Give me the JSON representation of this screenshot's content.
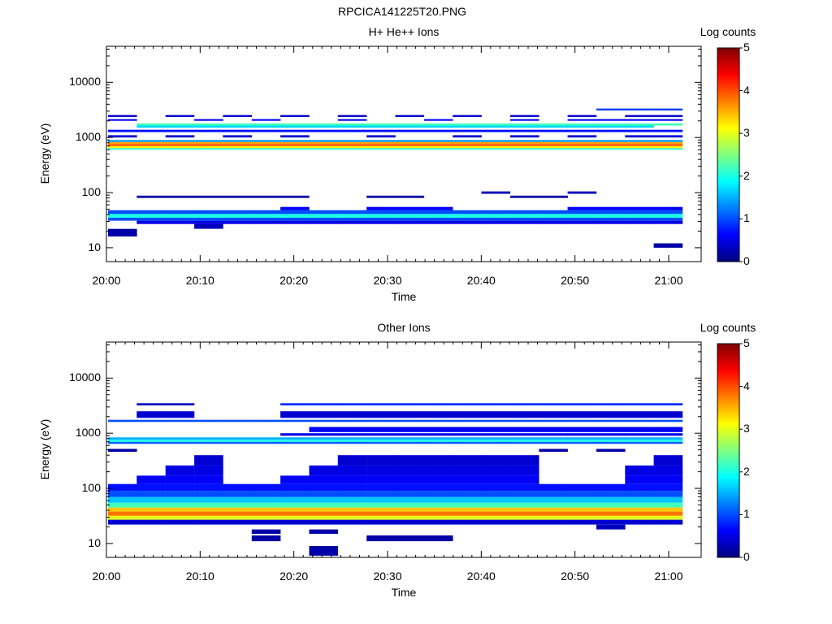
{
  "figure": {
    "title": "RPCICA141225T20.PNG"
  },
  "colorscale": [
    "#00007f",
    "#0000ff",
    "#007fff",
    "#00ffff",
    "#7fff7f",
    "#ffff00",
    "#ff7f00",
    "#ff0000",
    "#7f0000"
  ],
  "chart_data": [
    {
      "type": "heatmap",
      "title": "H+ He++ Ions",
      "xlabel": "Time",
      "ylabel": "Energy (eV)",
      "colorbar_label": "Log counts",
      "colorbar_range": [
        0,
        5
      ],
      "colorbar_ticks": [
        "0",
        "1",
        "2",
        "3",
        "4",
        "5"
      ],
      "y_scale": "log",
      "y_range_eV": [
        5.6,
        45000
      ],
      "y_ticks": [
        "10",
        "100",
        "1000",
        "10000"
      ],
      "x_range": [
        "20:00",
        "21:03"
      ],
      "x_ticks": [
        "20:00",
        "20:10",
        "20:20",
        "20:30",
        "20:40",
        "20:50",
        "21:00"
      ],
      "time_bins": [
        "20:00",
        "20:03",
        "20:06",
        "20:10",
        "20:13",
        "20:16",
        "20:19",
        "20:22",
        "20:25",
        "20:29",
        "20:32",
        "20:35",
        "20:38",
        "20:41",
        "20:45",
        "20:48",
        "20:51",
        "20:54",
        "20:57",
        "21:00"
      ],
      "bands": [
        {
          "energy_eV": [
            16,
            22
          ],
          "value": 0.2,
          "bins": [
            0
          ]
        },
        {
          "energy_eV": [
            22,
            27
          ],
          "value": 0.3,
          "bins": [
            3
          ]
        },
        {
          "energy_eV": [
            27,
            31
          ],
          "value": 0.5,
          "bins": [
            1,
            2,
            3,
            4,
            5,
            6,
            7,
            8,
            9,
            10,
            11,
            12,
            13,
            14,
            15,
            16,
            17,
            18,
            19
          ]
        },
        {
          "energy_eV": [
            31,
            35
          ],
          "value": 1.0,
          "bins": [
            0,
            1,
            2,
            3,
            4,
            5,
            6,
            7,
            8,
            9,
            10,
            11,
            12,
            13,
            14,
            15,
            16,
            17,
            18,
            19
          ]
        },
        {
          "energy_eV": [
            35,
            41
          ],
          "value": 2.0,
          "bins": [
            0,
            1,
            2,
            3,
            4,
            5,
            6,
            7,
            8,
            9,
            10,
            11,
            12,
            13,
            14,
            15,
            16,
            17,
            18,
            19
          ]
        },
        {
          "energy_eV": [
            41,
            48
          ],
          "value": 1.0,
          "bins": [
            0,
            1,
            2,
            3,
            4,
            5,
            6,
            7,
            8,
            9,
            10,
            11,
            12,
            13,
            14,
            15,
            16,
            17,
            18,
            19
          ]
        },
        {
          "energy_eV": [
            48,
            55
          ],
          "value": 0.6,
          "bins": [
            6,
            9,
            10,
            11,
            16,
            17,
            18,
            19
          ]
        },
        {
          "energy_eV": [
            600,
            640
          ],
          "value": 2.0,
          "bins": [
            0,
            1,
            2,
            3,
            4,
            5,
            6,
            7,
            8,
            9,
            10,
            11,
            12,
            13,
            14,
            15,
            16,
            17,
            18,
            19
          ]
        },
        {
          "energy_eV": [
            640,
            700
          ],
          "value": 3.2,
          "bins": [
            0,
            1,
            2,
            3,
            4,
            5,
            6,
            7,
            8,
            9,
            10,
            11,
            12,
            13,
            14,
            15,
            16,
            17,
            18,
            19
          ]
        },
        {
          "energy_eV": [
            700,
            760
          ],
          "value": 4.0,
          "bins": [
            0,
            1,
            2,
            3,
            4,
            5,
            6,
            7,
            8,
            9,
            10,
            11,
            12,
            13,
            14,
            15,
            16,
            17,
            18,
            19
          ]
        },
        {
          "energy_eV": [
            760,
            830
          ],
          "value": 3.6,
          "bins": [
            0,
            1,
            2,
            3,
            4,
            5,
            6,
            7,
            8,
            9,
            10,
            11,
            12,
            13,
            14,
            15,
            16,
            17,
            18,
            19
          ]
        },
        {
          "energy_eV": [
            830,
            900
          ],
          "value": 1.4,
          "bins": [
            0,
            1,
            2,
            3,
            4,
            5,
            6,
            7,
            8,
            9,
            10,
            11,
            12,
            13,
            14,
            15,
            16,
            17,
            18,
            19
          ]
        },
        {
          "energy_eV": [
            1000,
            1100
          ],
          "value": 0.4,
          "bins": [
            0,
            2,
            4,
            6,
            9,
            12,
            14,
            16,
            18,
            19
          ]
        },
        {
          "energy_eV": [
            1250,
            1380
          ],
          "value": 0.7,
          "bins": [
            0,
            1,
            2,
            3,
            4,
            5,
            6,
            7,
            8,
            9,
            10,
            11,
            12,
            13,
            14,
            15,
            16,
            17,
            18,
            19
          ]
        },
        {
          "energy_eV": [
            1500,
            1650
          ],
          "value": 1.7,
          "bins": [
            1,
            2,
            3,
            4,
            5,
            6,
            7,
            8,
            9,
            10,
            11,
            12,
            13,
            14,
            15,
            16,
            17,
            18
          ]
        },
        {
          "energy_eV": [
            1650,
            1800
          ],
          "value": 2.2,
          "bins": [
            1,
            2,
            3,
            4,
            5,
            6,
            7,
            8,
            9,
            10,
            11,
            12,
            13,
            14,
            15,
            16,
            17,
            18,
            19
          ]
        },
        {
          "energy_eV": [
            2000,
            2150
          ],
          "value": 0.6,
          "bins": [
            0,
            3,
            5,
            8,
            11,
            14,
            16,
            17,
            18,
            19
          ]
        },
        {
          "energy_eV": [
            2350,
            2550
          ],
          "value": 0.4,
          "bins": [
            0,
            2,
            4,
            6,
            8,
            10,
            12,
            14,
            16,
            18,
            19
          ]
        },
        {
          "energy_eV": [
            3100,
            3350
          ],
          "value": 0.9,
          "bins": [
            17,
            18,
            19
          ]
        },
        {
          "energy_eV": [
            80,
            88
          ],
          "value": 0.2,
          "bins": [
            1,
            2,
            3,
            4,
            5,
            6,
            9,
            10,
            14,
            15
          ]
        },
        {
          "energy_eV": [
            95,
            105
          ],
          "value": 0.3,
          "bins": [
            13,
            16
          ]
        },
        {
          "energy_eV": [
            10,
            12
          ],
          "value": 0.2,
          "bins": [
            19
          ]
        }
      ]
    },
    {
      "type": "heatmap",
      "title": "Other Ions",
      "xlabel": "Time",
      "ylabel": "Energy (eV)",
      "colorbar_label": "Log counts",
      "colorbar_range": [
        0,
        5
      ],
      "colorbar_ticks": [
        "0",
        "1",
        "2",
        "3",
        "4",
        "5"
      ],
      "y_scale": "log",
      "y_range_eV": [
        5.6,
        45000
      ],
      "y_ticks": [
        "10",
        "100",
        "1000",
        "10000"
      ],
      "x_range": [
        "20:00",
        "21:03"
      ],
      "x_ticks": [
        "20:00",
        "20:10",
        "20:20",
        "20:30",
        "20:40",
        "20:50",
        "21:00"
      ],
      "time_bins": [
        "20:00",
        "20:03",
        "20:06",
        "20:10",
        "20:13",
        "20:16",
        "20:19",
        "20:22",
        "20:25",
        "20:29",
        "20:32",
        "20:35",
        "20:38",
        "20:41",
        "20:45",
        "20:48",
        "20:51",
        "20:54",
        "20:57",
        "21:00"
      ],
      "bands": [
        {
          "energy_eV": [
            6,
            9
          ],
          "value": 0.2,
          "bins": [
            7
          ]
        },
        {
          "energy_eV": [
            11,
            14
          ],
          "value": 0.2,
          "bins": [
            5,
            9,
            10,
            11
          ]
        },
        {
          "energy_eV": [
            15,
            18
          ],
          "value": 0.2,
          "bins": [
            5,
            7
          ]
        },
        {
          "energy_eV": [
            18,
            22
          ],
          "value": 0.3,
          "bins": [
            17
          ]
        },
        {
          "energy_eV": [
            22,
            27
          ],
          "value": 0.4,
          "bins": [
            0,
            1,
            2,
            3,
            4,
            5,
            6,
            7,
            8,
            9,
            10,
            11,
            12,
            13,
            14,
            15,
            16,
            17,
            18,
            19
          ]
        },
        {
          "energy_eV": [
            27,
            32
          ],
          "value": 3.0,
          "bins": [
            0,
            1,
            2,
            3,
            4,
            5,
            6,
            7,
            8,
            9,
            10,
            11,
            12,
            13,
            14,
            15,
            16,
            17,
            18,
            19
          ]
        },
        {
          "energy_eV": [
            32,
            38
          ],
          "value": 3.8,
          "bins": [
            0,
            1,
            2,
            3,
            4,
            5,
            6,
            7,
            8,
            9,
            10,
            11,
            12,
            13,
            14,
            15,
            16,
            17,
            18,
            19
          ]
        },
        {
          "energy_eV": [
            38,
            45
          ],
          "value": 3.4,
          "bins": [
            0,
            1,
            2,
            3,
            4,
            5,
            6,
            7,
            8,
            9,
            10,
            11,
            12,
            13,
            14,
            15,
            16,
            17,
            18,
            19
          ]
        },
        {
          "energy_eV": [
            45,
            55
          ],
          "value": 2.2,
          "bins": [
            0,
            1,
            2,
            3,
            4,
            5,
            6,
            7,
            8,
            9,
            10,
            11,
            12,
            13,
            14,
            15,
            16,
            17,
            18,
            19
          ]
        },
        {
          "energy_eV": [
            55,
            70
          ],
          "value": 1.6,
          "bins": [
            0,
            1,
            2,
            3,
            4,
            5,
            6,
            7,
            8,
            9,
            10,
            11,
            12,
            13,
            14,
            15,
            16,
            17,
            18,
            19
          ]
        },
        {
          "energy_eV": [
            70,
            90
          ],
          "value": 1.0,
          "bins": [
            0,
            1,
            2,
            3,
            4,
            5,
            6,
            7,
            8,
            9,
            10,
            11,
            12,
            13,
            14,
            15,
            16,
            17,
            18,
            19
          ]
        },
        {
          "energy_eV": [
            90,
            120
          ],
          "value": 0.7,
          "bins": [
            0,
            1,
            2,
            3,
            4,
            5,
            6,
            7,
            8,
            9,
            10,
            11,
            12,
            13,
            14,
            15,
            16,
            17,
            18,
            19
          ]
        },
        {
          "energy_eV": [
            120,
            170
          ],
          "value": 0.6,
          "bins": [
            1,
            2,
            3,
            6,
            7,
            8,
            9,
            10,
            11,
            12,
            13,
            14,
            18,
            19
          ]
        },
        {
          "energy_eV": [
            170,
            260
          ],
          "value": 0.5,
          "bins": [
            2,
            3,
            7,
            8,
            9,
            10,
            11,
            12,
            13,
            14,
            18,
            19
          ]
        },
        {
          "energy_eV": [
            260,
            400
          ],
          "value": 0.4,
          "bins": [
            3,
            8,
            9,
            10,
            11,
            12,
            13,
            14,
            19
          ]
        },
        {
          "energy_eV": [
            460,
            520
          ],
          "value": 0.2,
          "bins": [
            0,
            15,
            17
          ]
        },
        {
          "energy_eV": [
            640,
            700
          ],
          "value": 1.1,
          "bins": [
            0,
            1,
            2,
            3,
            4,
            5,
            6,
            7,
            8,
            9,
            10,
            11,
            12,
            13,
            14,
            15,
            16,
            17,
            18,
            19
          ]
        },
        {
          "energy_eV": [
            700,
            760
          ],
          "value": 2.0,
          "bins": [
            0,
            1,
            2,
            3,
            4,
            5,
            6,
            7,
            8,
            9,
            10,
            11,
            12,
            13,
            14,
            15,
            16,
            17,
            18,
            19
          ]
        },
        {
          "energy_eV": [
            760,
            840
          ],
          "value": 1.5,
          "bins": [
            0,
            1,
            2,
            3,
            4,
            5,
            6,
            7,
            8,
            9,
            10,
            11,
            12,
            13,
            14,
            15,
            16,
            17,
            18,
            19
          ]
        },
        {
          "energy_eV": [
            900,
            1000
          ],
          "value": 0.5,
          "bins": [
            6,
            7,
            8,
            9,
            10,
            11,
            12,
            13,
            14,
            15,
            16,
            17,
            18,
            19
          ]
        },
        {
          "energy_eV": [
            1050,
            1300
          ],
          "value": 0.6,
          "bins": [
            7,
            8,
            9,
            10,
            11,
            12,
            13,
            14,
            15,
            16,
            17,
            18,
            19
          ]
        },
        {
          "energy_eV": [
            1600,
            1750
          ],
          "value": 1.0,
          "bins": [
            0,
            1,
            2,
            3,
            4,
            5,
            6,
            7,
            8,
            9,
            10,
            11,
            12,
            13,
            14,
            15,
            16,
            17,
            18,
            19
          ]
        },
        {
          "energy_eV": [
            1900,
            2500
          ],
          "value": 0.4,
          "bins": [
            1,
            2,
            6,
            7,
            8,
            9,
            10,
            11,
            12,
            13,
            14,
            15,
            16,
            17,
            18,
            19
          ]
        },
        {
          "energy_eV": [
            3200,
            3500
          ],
          "value": 0.8,
          "bins": [
            6,
            7,
            8,
            9,
            10,
            11,
            12,
            13,
            14,
            15,
            16,
            17,
            18,
            19
          ]
        },
        {
          "energy_eV": [
            3200,
            3500
          ],
          "value": 0.3,
          "bins": [
            1,
            2
          ]
        }
      ]
    }
  ]
}
